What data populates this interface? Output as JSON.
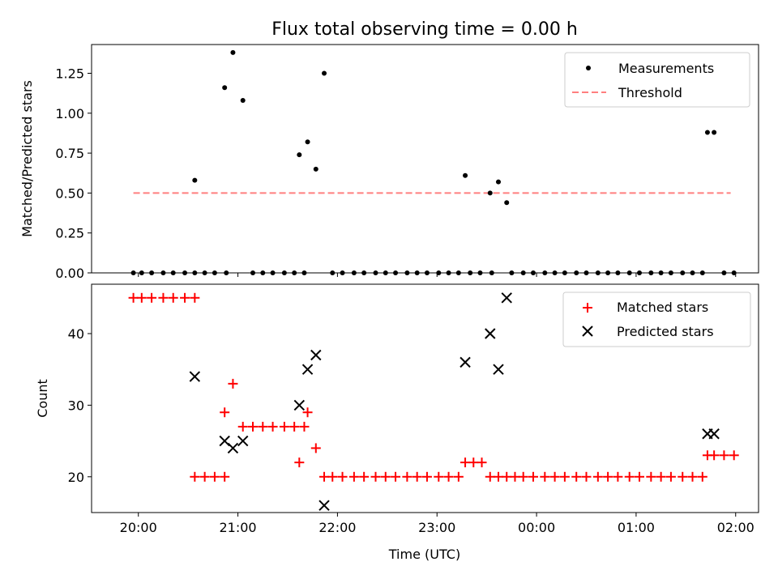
{
  "figure": {
    "title": "Flux total observing time = 0.00 h",
    "xlabel": "Time (UTC)"
  },
  "chart_data": [
    {
      "type": "scatter",
      "ylabel": "Matched/Predicted stars",
      "ylim": [
        0,
        1.43
      ],
      "yticks": [
        "0.00",
        "0.25",
        "0.50",
        "0.75",
        "1.00",
        "1.25"
      ],
      "ytick_values": [
        0,
        0.25,
        0.5,
        0.75,
        1.0,
        1.25
      ],
      "xlim_hours": [
        19.53,
        26.23
      ],
      "xticks": [
        "20:00",
        "21:00",
        "22:00",
        "23:00",
        "00:00",
        "01:00",
        "02:00"
      ],
      "xtick_hours": [
        20,
        21,
        22,
        23,
        24,
        25,
        26
      ],
      "threshold": 0.5,
      "threshold_x_hours": [
        19.95,
        25.95
      ],
      "legend": {
        "placement": "upper right",
        "entries": [
          "Measurements",
          "Threshold"
        ]
      },
      "series": [
        {
          "name": "Measurements",
          "color": "#000000",
          "points": [
            [
              "19:57",
              0
            ],
            [
              "20:02",
              0
            ],
            [
              "20:08",
              0
            ],
            [
              "20:15",
              0
            ],
            [
              "20:21",
              0
            ],
            [
              "20:28",
              0
            ],
            [
              "20:34",
              0
            ],
            [
              "20:34",
              0.58
            ],
            [
              "20:40",
              0
            ],
            [
              "20:46",
              0
            ],
            [
              "20:53",
              0
            ],
            [
              "20:52",
              1.16
            ],
            [
              "20:57",
              1.38
            ],
            [
              "21:03",
              1.08
            ],
            [
              "21:09",
              0
            ],
            [
              "21:15",
              0
            ],
            [
              "21:21",
              0
            ],
            [
              "21:28",
              0
            ],
            [
              "21:34",
              0
            ],
            [
              "21:40",
              0
            ],
            [
              "21:37",
              0.74
            ],
            [
              "21:42",
              0.82
            ],
            [
              "21:47",
              0.65
            ],
            [
              "21:52",
              1.25
            ],
            [
              "21:57",
              0
            ],
            [
              "22:03",
              0
            ],
            [
              "22:10",
              0
            ],
            [
              "22:16",
              0
            ],
            [
              "22:23",
              0
            ],
            [
              "22:29",
              0
            ],
            [
              "22:35",
              0
            ],
            [
              "22:42",
              0
            ],
            [
              "22:48",
              0
            ],
            [
              "22:54",
              0
            ],
            [
              "23:01",
              0
            ],
            [
              "23:07",
              0
            ],
            [
              "23:13",
              0
            ],
            [
              "23:20",
              0
            ],
            [
              "23:17",
              0.61
            ],
            [
              "23:26",
              0
            ],
            [
              "23:33",
              0
            ],
            [
              "23:32",
              0.5
            ],
            [
              "23:37",
              0.57
            ],
            [
              "23:42",
              0.44
            ],
            [
              "23:45",
              0
            ],
            [
              "23:52",
              0
            ],
            [
              "23:58",
              0
            ],
            [
              "00:05",
              0
            ],
            [
              "00:11",
              0
            ],
            [
              "00:17",
              0
            ],
            [
              "00:24",
              0
            ],
            [
              "00:30",
              0
            ],
            [
              "00:37",
              0
            ],
            [
              "00:43",
              0
            ],
            [
              "00:49",
              0
            ],
            [
              "00:56",
              0
            ],
            [
              "01:02",
              0
            ],
            [
              "01:09",
              0
            ],
            [
              "01:15",
              0
            ],
            [
              "01:21",
              0
            ],
            [
              "01:28",
              0
            ],
            [
              "01:34",
              0
            ],
            [
              "01:40",
              0
            ],
            [
              "01:43",
              0.88
            ],
            [
              "01:47",
              0.88
            ],
            [
              "01:53",
              0
            ],
            [
              "01:59",
              0
            ]
          ]
        }
      ]
    },
    {
      "type": "scatter",
      "ylabel": "Count",
      "ylim": [
        15,
        46.9
      ],
      "yticks": [
        "20",
        "30",
        "40"
      ],
      "ytick_values": [
        20,
        30,
        40
      ],
      "xlim_hours": [
        19.53,
        26.23
      ],
      "xticks": [
        "20:00",
        "21:00",
        "22:00",
        "23:00",
        "00:00",
        "01:00",
        "02:00"
      ],
      "xtick_hours": [
        20,
        21,
        22,
        23,
        24,
        25,
        26
      ],
      "legend": {
        "placement": "upper right",
        "entries": [
          "Matched stars",
          "Predicted stars"
        ]
      },
      "series": [
        {
          "name": "Matched stars",
          "marker": "+",
          "color": "#ff0000",
          "points": [
            [
              "19:57",
              45
            ],
            [
              "20:02",
              45
            ],
            [
              "20:08",
              45
            ],
            [
              "20:15",
              45
            ],
            [
              "20:21",
              45
            ],
            [
              "20:28",
              45
            ],
            [
              "20:34",
              45
            ],
            [
              "20:34",
              20
            ],
            [
              "20:40",
              20
            ],
            [
              "20:46",
              20
            ],
            [
              "20:52",
              20
            ],
            [
              "20:52",
              29
            ],
            [
              "20:57",
              33
            ],
            [
              "21:03",
              27
            ],
            [
              "21:09",
              27
            ],
            [
              "21:15",
              27
            ],
            [
              "21:21",
              27
            ],
            [
              "21:28",
              27
            ],
            [
              "21:34",
              27
            ],
            [
              "21:40",
              27
            ],
            [
              "21:37",
              22
            ],
            [
              "21:42",
              29
            ],
            [
              "21:47",
              24
            ],
            [
              "21:52",
              20
            ],
            [
              "21:57",
              20
            ],
            [
              "22:03",
              20
            ],
            [
              "22:10",
              20
            ],
            [
              "22:16",
              20
            ],
            [
              "22:23",
              20
            ],
            [
              "22:29",
              20
            ],
            [
              "22:35",
              20
            ],
            [
              "22:42",
              20
            ],
            [
              "22:48",
              20
            ],
            [
              "22:54",
              20
            ],
            [
              "23:01",
              20
            ],
            [
              "23:07",
              20
            ],
            [
              "23:13",
              20
            ],
            [
              "23:17",
              22
            ],
            [
              "23:22",
              22
            ],
            [
              "23:27",
              22
            ],
            [
              "23:32",
              20
            ],
            [
              "23:37",
              20
            ],
            [
              "23:42",
              20
            ],
            [
              "23:47",
              20
            ],
            [
              "23:52",
              20
            ],
            [
              "23:58",
              20
            ],
            [
              "00:05",
              20
            ],
            [
              "00:11",
              20
            ],
            [
              "00:17",
              20
            ],
            [
              "00:24",
              20
            ],
            [
              "00:30",
              20
            ],
            [
              "00:37",
              20
            ],
            [
              "00:43",
              20
            ],
            [
              "00:49",
              20
            ],
            [
              "00:56",
              20
            ],
            [
              "01:02",
              20
            ],
            [
              "01:09",
              20
            ],
            [
              "01:15",
              20
            ],
            [
              "01:21",
              20
            ],
            [
              "01:28",
              20
            ],
            [
              "01:34",
              20
            ],
            [
              "01:40",
              20
            ],
            [
              "01:43",
              23
            ],
            [
              "01:47",
              23
            ],
            [
              "01:53",
              23
            ],
            [
              "01:59",
              23
            ]
          ]
        },
        {
          "name": "Predicted stars",
          "marker": "x",
          "color": "#000000",
          "points": [
            [
              "20:34",
              34
            ],
            [
              "20:52",
              25
            ],
            [
              "20:57",
              24
            ],
            [
              "21:03",
              25
            ],
            [
              "21:37",
              30
            ],
            [
              "21:42",
              35
            ],
            [
              "21:47",
              37
            ],
            [
              "21:52",
              16
            ],
            [
              "23:17",
              36
            ],
            [
              "23:32",
              40
            ],
            [
              "23:37",
              35
            ],
            [
              "23:42",
              45
            ],
            [
              "01:43",
              26
            ],
            [
              "01:47",
              26
            ]
          ]
        }
      ]
    }
  ]
}
